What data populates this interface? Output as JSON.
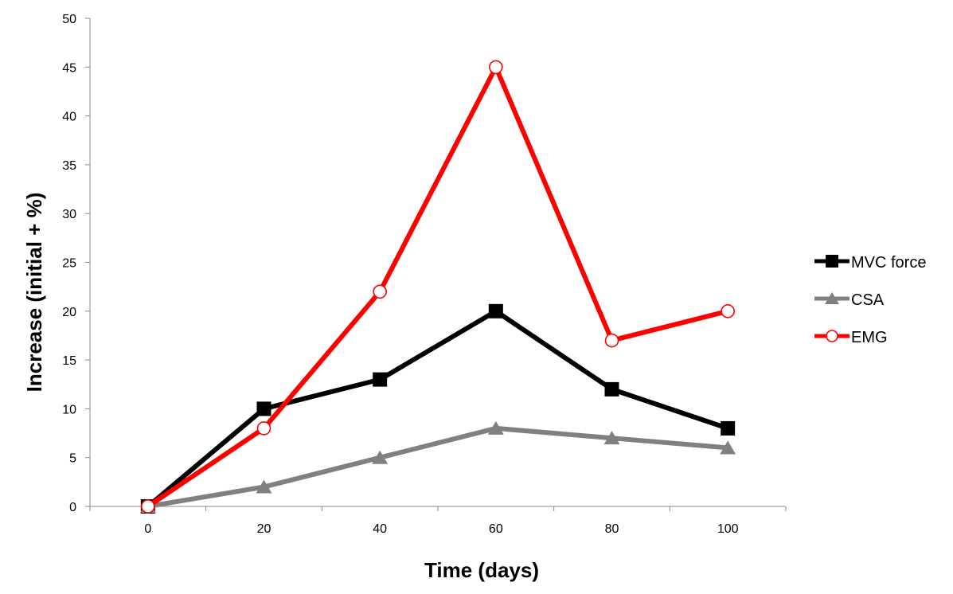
{
  "chart_data": {
    "type": "line",
    "title": "",
    "xlabel": "Time (days)",
    "ylabel": "Increase (initial + %)",
    "x": [
      0,
      20,
      40,
      60,
      80,
      100
    ],
    "xticks": [
      "0",
      "20",
      "40",
      "60",
      "80",
      "100"
    ],
    "yticks": [
      "0",
      "5",
      "10",
      "15",
      "20",
      "25",
      "30",
      "35",
      "40",
      "45",
      "50"
    ],
    "ylim": [
      0,
      50
    ],
    "grid": false,
    "legend_position": "right",
    "series": [
      {
        "name": "MVC force",
        "values": [
          0,
          10,
          13,
          20,
          12,
          8
        ],
        "color": "#000000",
        "marker": "square"
      },
      {
        "name": "CSA",
        "values": [
          0,
          2,
          5,
          8,
          7,
          6
        ],
        "color": "#808080",
        "marker": "triangle"
      },
      {
        "name": "EMG",
        "values": [
          0,
          8,
          22,
          45,
          17,
          20
        ],
        "color": "#ff0000",
        "marker": "open-circle"
      }
    ]
  }
}
